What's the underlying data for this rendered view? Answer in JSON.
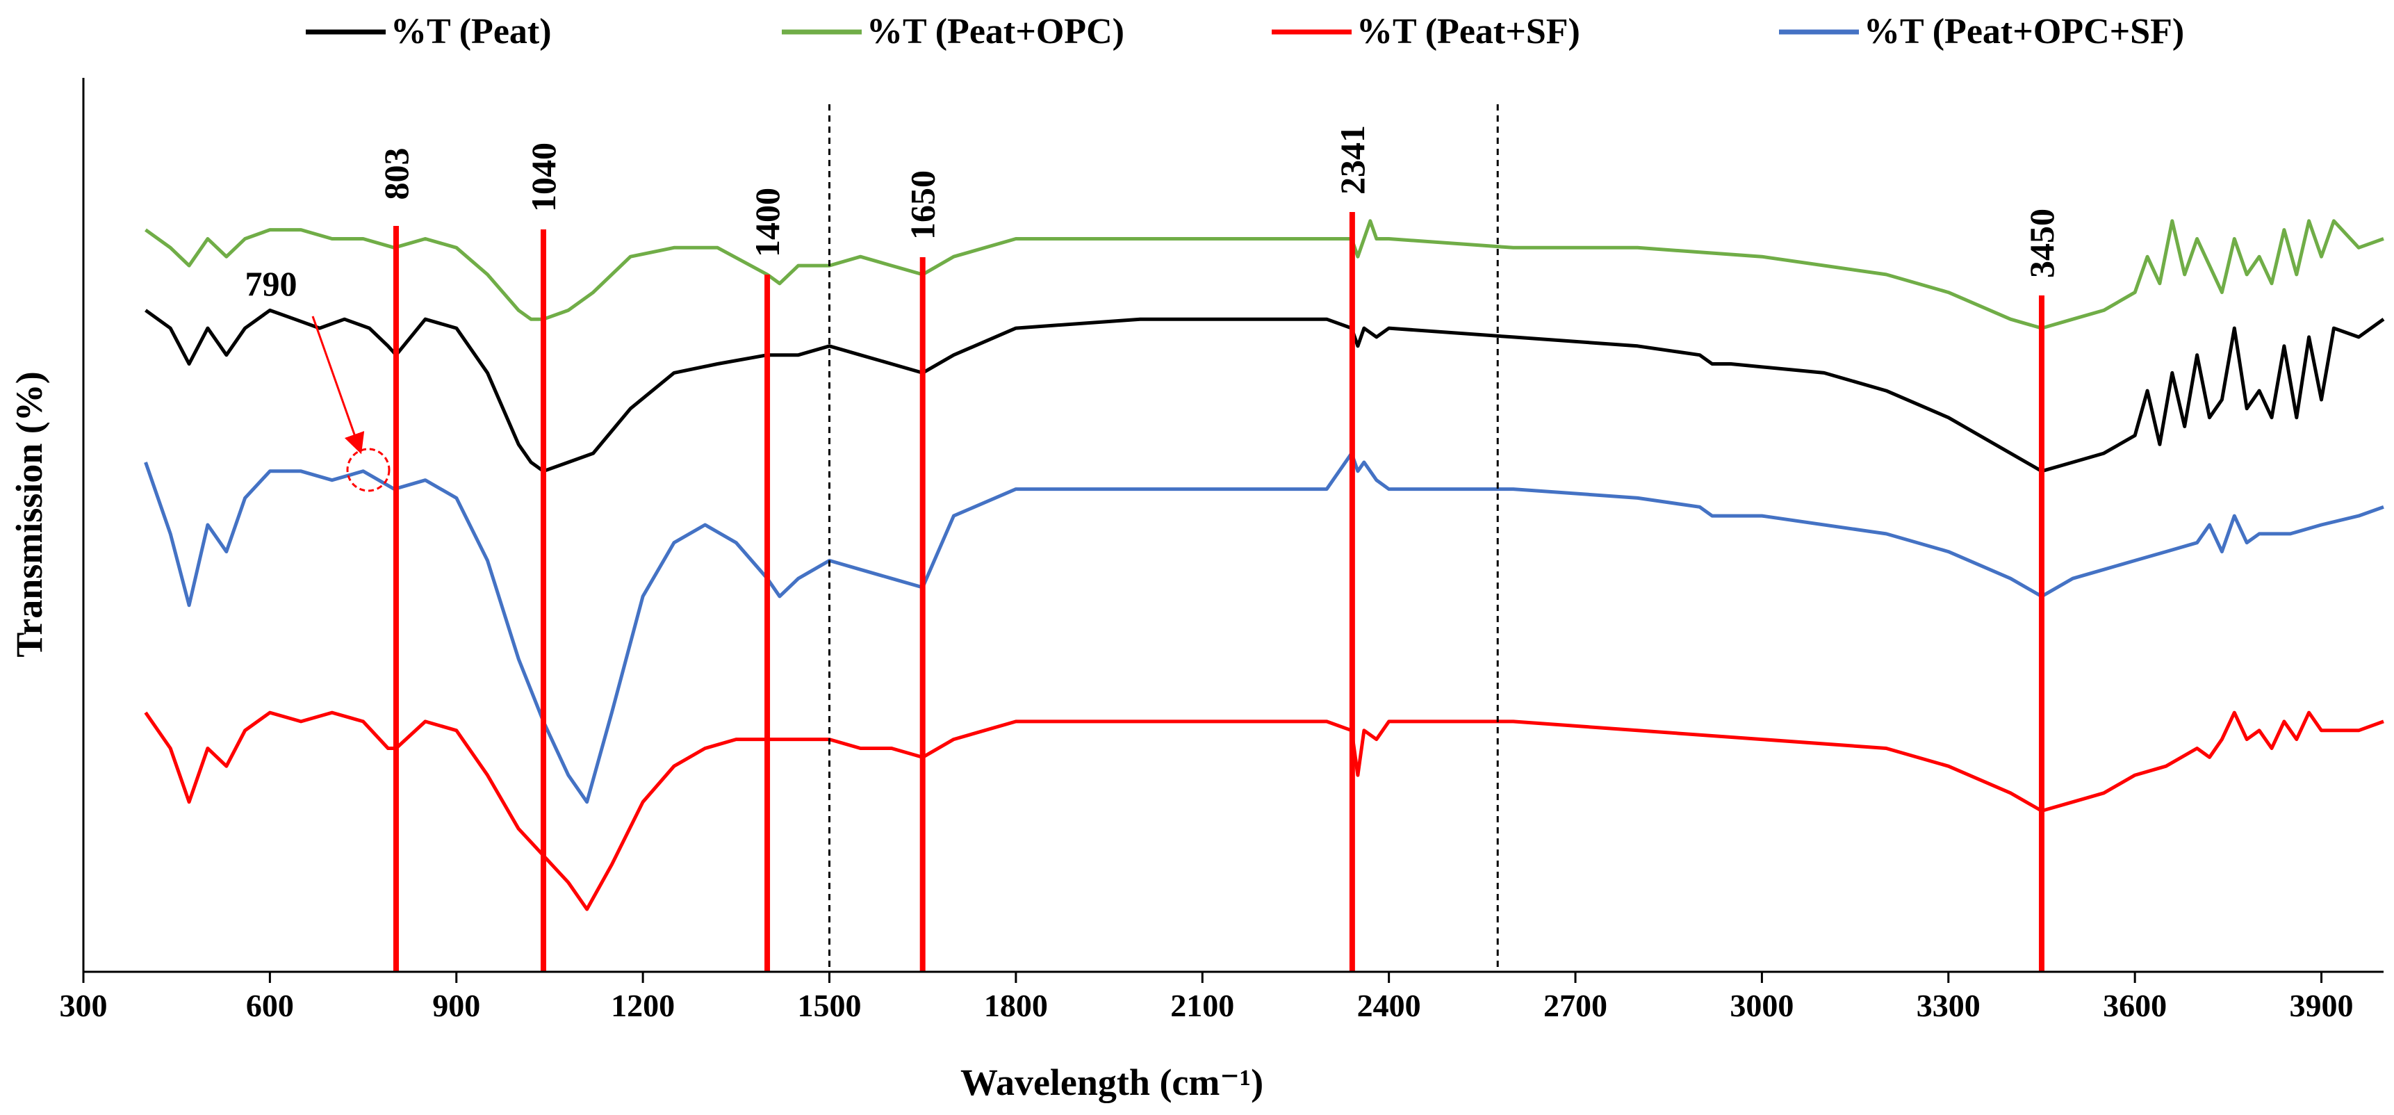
{
  "chart_data": {
    "type": "line",
    "title": "",
    "xlabel": "Wavelength (cm⁻¹)",
    "ylabel": "Transmission (%)",
    "xlim": [
      300,
      4000
    ],
    "ylim": [
      0,
      100
    ],
    "x_ticks": [
      300,
      600,
      900,
      1200,
      1500,
      1800,
      2100,
      2400,
      2700,
      3000,
      3300,
      3600,
      3900
    ],
    "y_ticks_shown": false,
    "grid": false,
    "legend_position": "top",
    "series": [
      {
        "name": "%T (Peat)",
        "color": "#000000",
        "x": [
          400,
          440,
          470,
          500,
          530,
          560,
          600,
          640,
          680,
          720,
          760,
          790,
          803,
          850,
          900,
          950,
          1000,
          1020,
          1040,
          1080,
          1120,
          1180,
          1250,
          1320,
          1400,
          1450,
          1500,
          1550,
          1600,
          1650,
          1700,
          1800,
          2000,
          2200,
          2300,
          2340,
          2350,
          2360,
          2380,
          2400,
          2600,
          2800,
          2900,
          2920,
          2950,
          3100,
          3200,
          3300,
          3400,
          3450,
          3500,
          3550,
          3600,
          3620,
          3640,
          3660,
          3680,
          3700,
          3720,
          3740,
          3760,
          3780,
          3800,
          3820,
          3840,
          3860,
          3880,
          3900,
          3920,
          3960,
          4000
        ],
        "values": [
          74,
          72,
          68,
          72,
          69,
          72,
          74,
          73,
          72,
          73,
          72,
          70,
          69,
          73,
          72,
          67,
          59,
          57,
          56,
          57,
          58,
          63,
          67,
          68,
          69,
          69,
          70,
          69,
          68,
          67,
          69,
          72,
          73,
          73,
          73,
          72,
          70,
          72,
          71,
          72,
          71,
          70,
          69,
          68,
          68,
          67,
          65,
          62,
          58,
          56,
          57,
          58,
          60,
          65,
          59,
          67,
          61,
          69,
          62,
          64,
          72,
          63,
          65,
          62,
          70,
          62,
          71,
          64,
          72,
          71,
          73
        ]
      },
      {
        "name": "%T (Peat+OPC)",
        "color": "#70ad47",
        "x": [
          400,
          440,
          470,
          500,
          530,
          560,
          600,
          650,
          700,
          750,
          800,
          850,
          900,
          950,
          1000,
          1020,
          1040,
          1080,
          1120,
          1180,
          1250,
          1320,
          1400,
          1420,
          1450,
          1500,
          1550,
          1600,
          1650,
          1700,
          1800,
          2000,
          2200,
          2300,
          2340,
          2350,
          2370,
          2380,
          2400,
          2600,
          2800,
          3000,
          3200,
          3300,
          3400,
          3450,
          3500,
          3550,
          3600,
          3620,
          3640,
          3660,
          3680,
          3700,
          3720,
          3740,
          3760,
          3780,
          3800,
          3820,
          3840,
          3860,
          3880,
          3900,
          3920,
          3960,
          4000
        ],
        "values": [
          83,
          81,
          79,
          82,
          80,
          82,
          83,
          83,
          82,
          82,
          81,
          82,
          81,
          78,
          74,
          73,
          73,
          74,
          76,
          80,
          81,
          81,
          78,
          77,
          79,
          79,
          80,
          79,
          78,
          80,
          82,
          82,
          82,
          82,
          82,
          80,
          84,
          82,
          82,
          81,
          81,
          80,
          78,
          76,
          73,
          72,
          73,
          74,
          76,
          80,
          77,
          84,
          78,
          82,
          79,
          76,
          82,
          78,
          80,
          77,
          83,
          78,
          84,
          80,
          84,
          81,
          82
        ]
      },
      {
        "name": "%T (Peat+SF)",
        "color": "#ff0000",
        "x": [
          400,
          440,
          470,
          500,
          530,
          560,
          600,
          650,
          700,
          750,
          790,
          803,
          850,
          900,
          950,
          1000,
          1040,
          1080,
          1110,
          1150,
          1200,
          1250,
          1300,
          1350,
          1400,
          1450,
          1500,
          1550,
          1600,
          1650,
          1700,
          1800,
          2000,
          2200,
          2300,
          2340,
          2350,
          2360,
          2380,
          2400,
          2600,
          2800,
          3000,
          3200,
          3300,
          3400,
          3450,
          3500,
          3550,
          3600,
          3650,
          3700,
          3720,
          3740,
          3760,
          3780,
          3800,
          3820,
          3840,
          3860,
          3880,
          3900,
          3960,
          4000
        ],
        "values": [
          29,
          25,
          19,
          25,
          23,
          27,
          29,
          28,
          29,
          28,
          25,
          25,
          28,
          27,
          22,
          16,
          13,
          10,
          7,
          12,
          19,
          23,
          25,
          26,
          26,
          26,
          26,
          25,
          25,
          24,
          26,
          28,
          28,
          28,
          28,
          27,
          22,
          27,
          26,
          28,
          28,
          27,
          26,
          25,
          23,
          20,
          18,
          19,
          20,
          22,
          23,
          25,
          24,
          26,
          29,
          26,
          27,
          25,
          28,
          26,
          29,
          27,
          27,
          28
        ]
      },
      {
        "name": "%T (Peat+OPC+SF)",
        "color": "#4472c4",
        "x": [
          400,
          440,
          470,
          500,
          530,
          560,
          600,
          650,
          700,
          750,
          800,
          850,
          900,
          950,
          1000,
          1040,
          1080,
          1110,
          1150,
          1200,
          1250,
          1300,
          1350,
          1400,
          1420,
          1450,
          1500,
          1550,
          1600,
          1650,
          1700,
          1800,
          2000,
          2200,
          2300,
          2340,
          2350,
          2360,
          2380,
          2400,
          2600,
          2800,
          2900,
          2920,
          3000,
          3200,
          3300,
          3400,
          3450,
          3500,
          3550,
          3600,
          3650,
          3700,
          3720,
          3740,
          3760,
          3780,
          3800,
          3850,
          3900,
          3960,
          4000
        ],
        "values": [
          57,
          49,
          41,
          50,
          47,
          53,
          56,
          56,
          55,
          56,
          54,
          55,
          53,
          46,
          35,
          28,
          22,
          19,
          29,
          42,
          48,
          50,
          48,
          44,
          42,
          44,
          46,
          45,
          44,
          43,
          51,
          54,
          54,
          54,
          54,
          58,
          56,
          57,
          55,
          54,
          54,
          53,
          52,
          51,
          51,
          49,
          47,
          44,
          42,
          44,
          45,
          46,
          47,
          48,
          50,
          47,
          51,
          48,
          49,
          49,
          50,
          51,
          52
        ]
      }
    ],
    "vertical_markers": [
      {
        "x": 803,
        "label": "803",
        "color": "#ff0000",
        "style": "solid"
      },
      {
        "x": 1040,
        "label": "1040",
        "color": "#ff0000",
        "style": "solid"
      },
      {
        "x": 1400,
        "label": "1400",
        "color": "#ff0000",
        "style": "solid"
      },
      {
        "x": 1650,
        "label": "1650",
        "color": "#ff0000",
        "style": "solid"
      },
      {
        "x": 2341,
        "label": "2341",
        "color": "#ff0000",
        "style": "solid"
      },
      {
        "x": 3450,
        "label": "3450",
        "color": "#ff0000",
        "style": "solid"
      },
      {
        "x": 1500,
        "label": "",
        "color": "#000000",
        "style": "dashed"
      },
      {
        "x": 2575,
        "label": "",
        "color": "#000000",
        "style": "dashed"
      }
    ],
    "annotations": [
      {
        "text": "790",
        "x": 790,
        "color": "#ff0000"
      }
    ]
  }
}
